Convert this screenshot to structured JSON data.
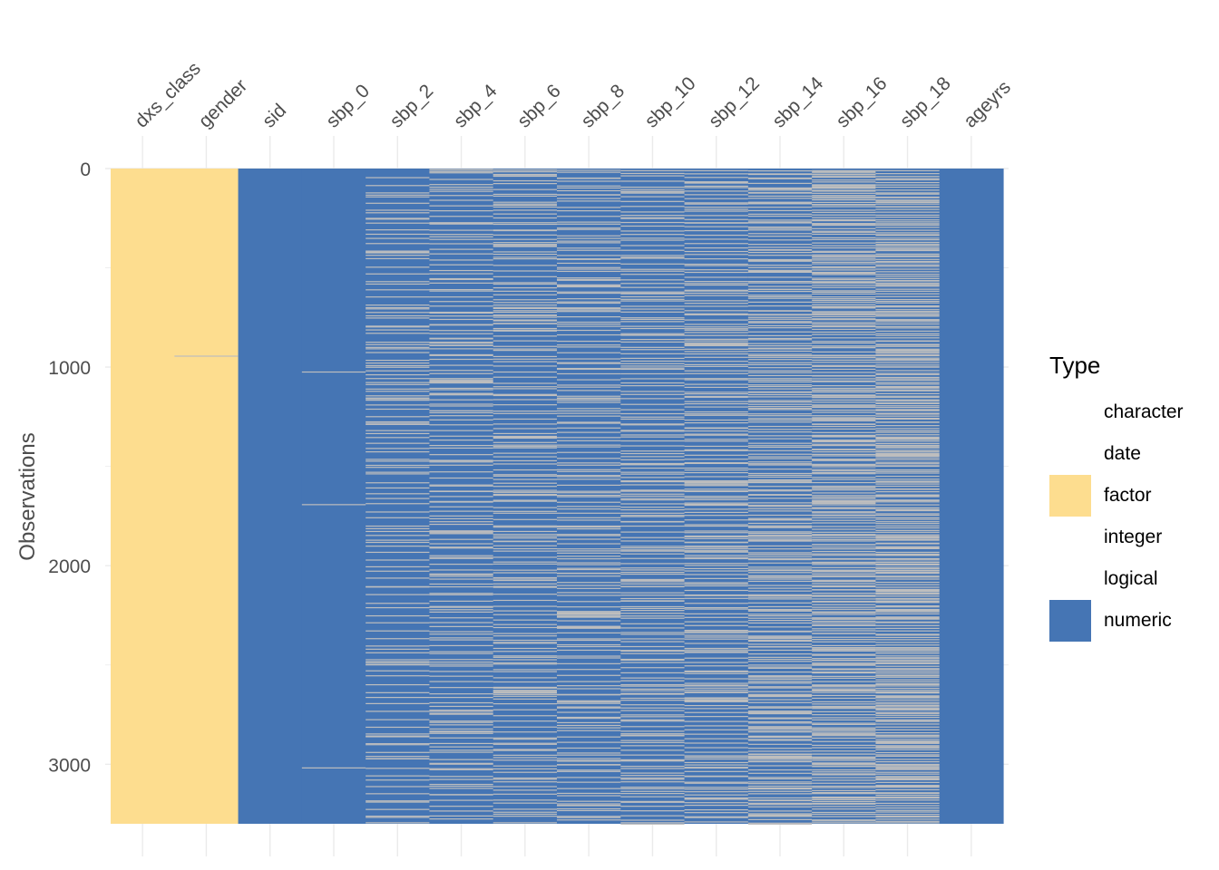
{
  "chart_data": {
    "type": "heatmap",
    "title": "",
    "ylabel": "Observations",
    "xlabel": "",
    "n_observations": 3300,
    "ylim": [
      0,
      3300
    ],
    "y_ticks": [
      0,
      1000,
      2000,
      3000
    ],
    "y_tick_labels": [
      "0",
      "1000",
      "2000",
      "3000"
    ],
    "columns": [
      "dxs_class",
      "gender",
      "sid",
      "sbp_0",
      "sbp_2",
      "sbp_4",
      "sbp_6",
      "sbp_8",
      "sbp_10",
      "sbp_12",
      "sbp_14",
      "sbp_16",
      "sbp_18",
      "ageyrs"
    ],
    "column_types": [
      "factor",
      "factor",
      "numeric",
      "numeric",
      "numeric",
      "numeric",
      "numeric",
      "numeric",
      "numeric",
      "numeric",
      "numeric",
      "numeric",
      "numeric",
      "numeric"
    ],
    "missing_fraction": [
      0,
      0.0003,
      0,
      0.001,
      0.14,
      0.18,
      0.2,
      0.2,
      0.22,
      0.26,
      0.3,
      0.38,
      0.46,
      0
    ],
    "missing_color": "#bebebe",
    "colors": {
      "factor": "#fddd8f",
      "numeric": "#4575b4",
      "missing": "#bebebe",
      "grid": "#ebebeb"
    },
    "legend": {
      "title": "Type",
      "position": "right",
      "items": [
        {
          "label": "character",
          "color": ""
        },
        {
          "label": "date",
          "color": ""
        },
        {
          "label": "factor",
          "color": "#fddd8f"
        },
        {
          "label": "integer",
          "color": ""
        },
        {
          "label": "logical",
          "color": ""
        },
        {
          "label": "numeric",
          "color": "#4575b4"
        }
      ]
    },
    "grid": true
  }
}
